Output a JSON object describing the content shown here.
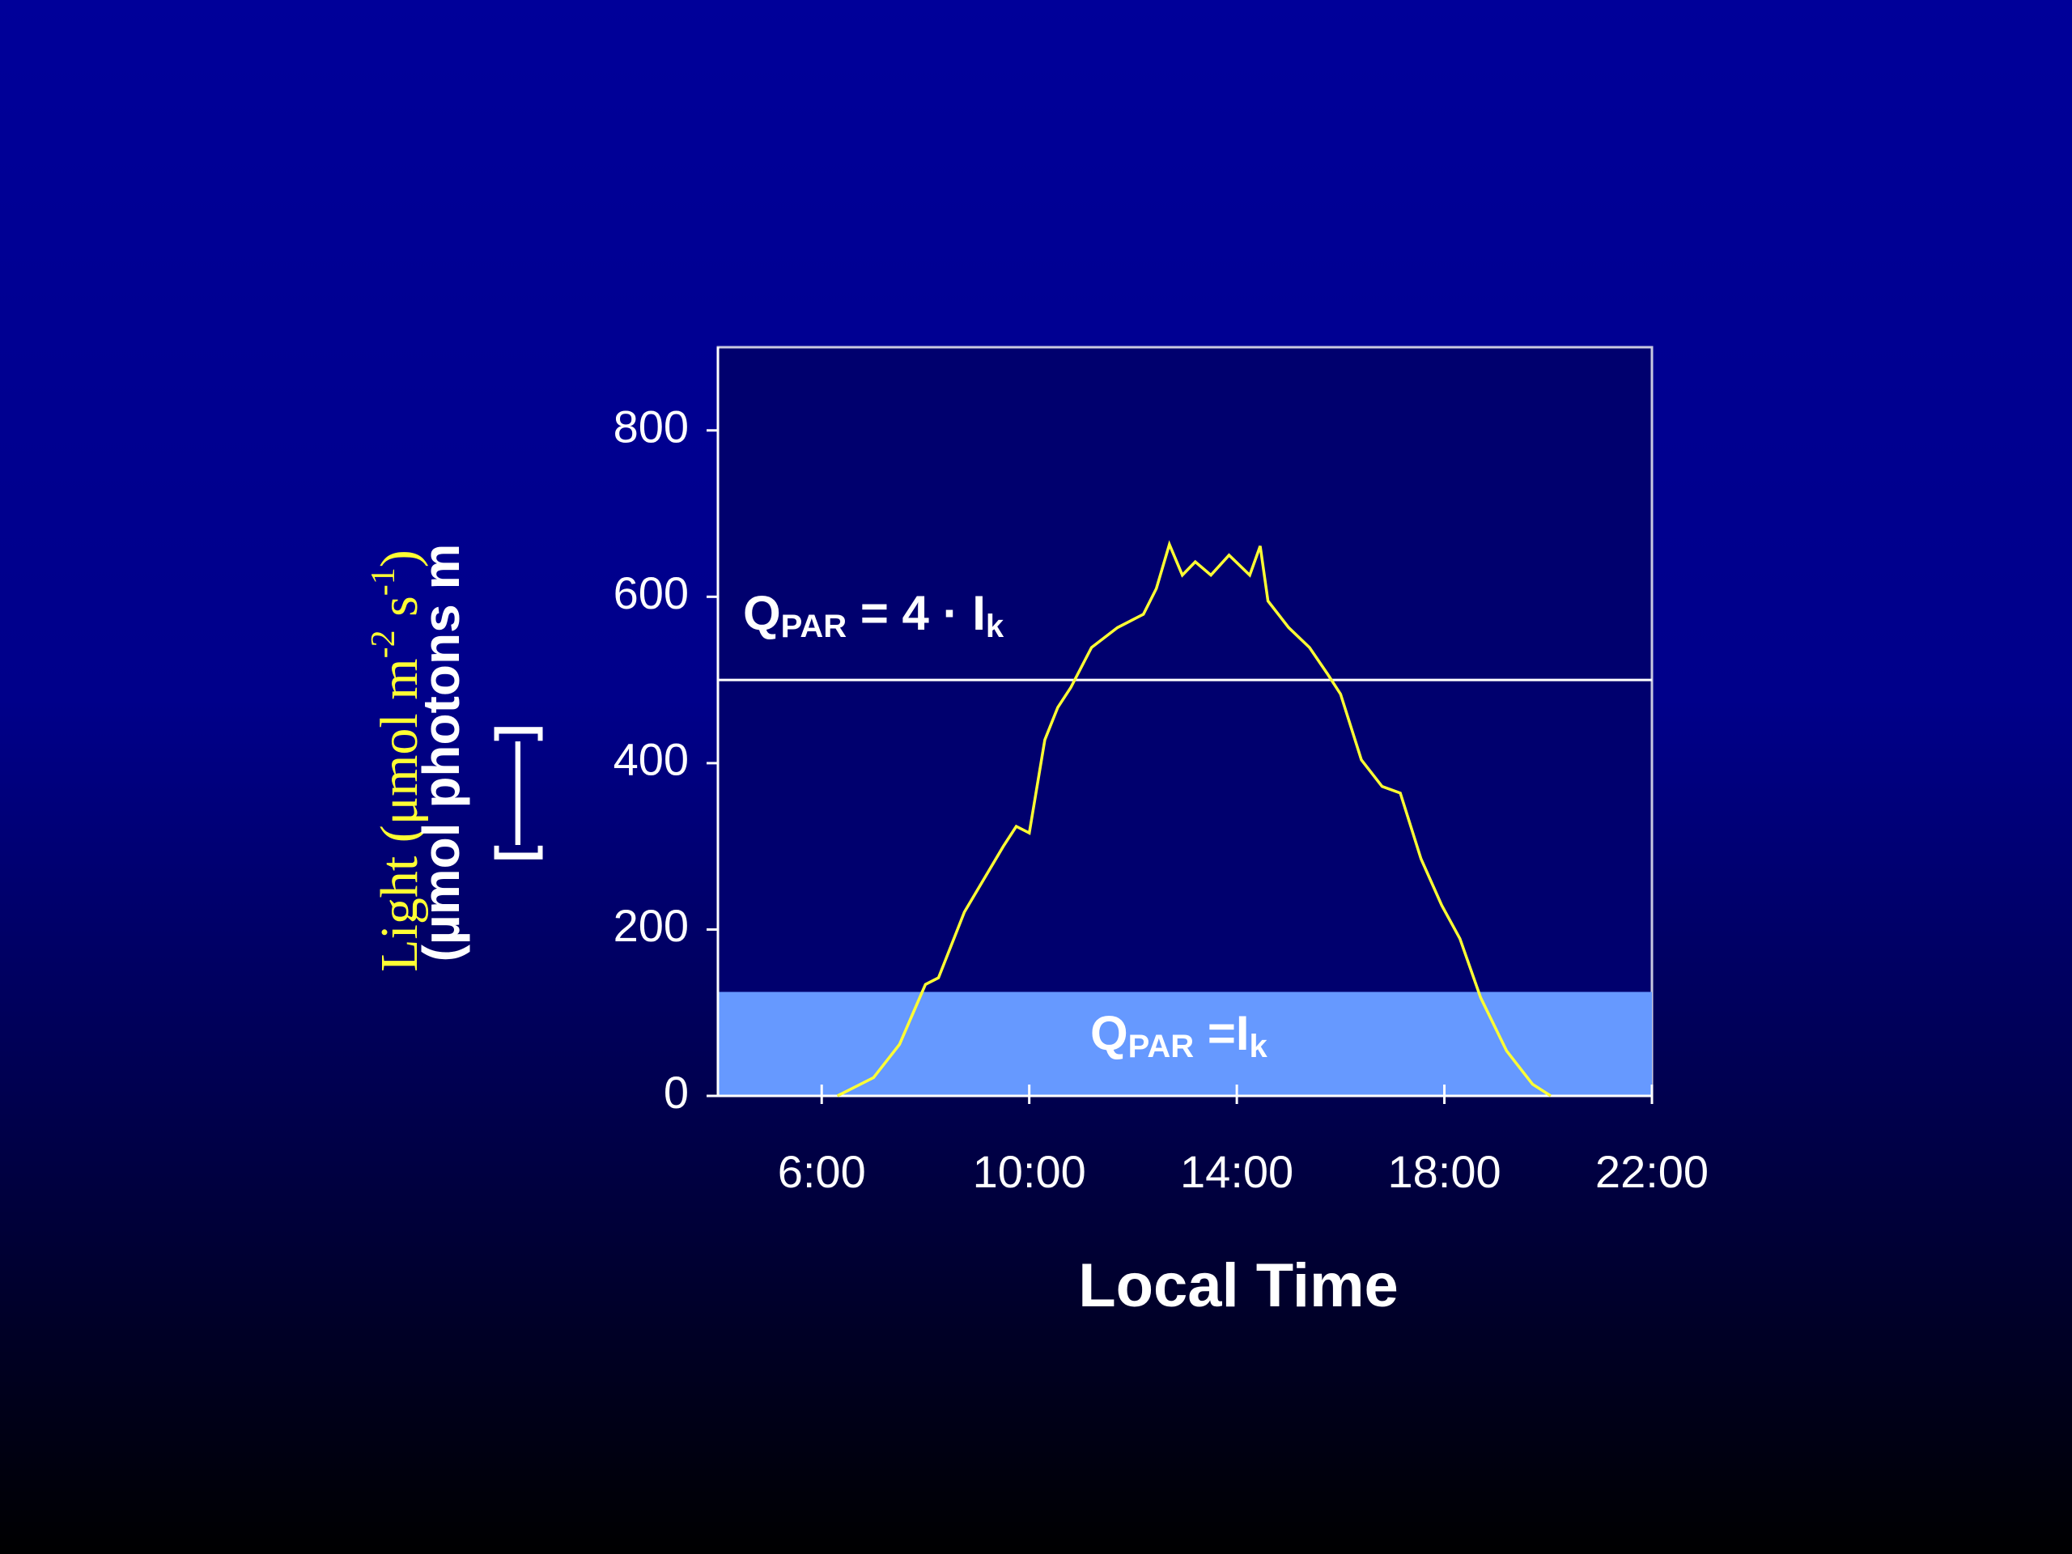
{
  "chart_data": {
    "type": "line",
    "x": [
      6.3,
      7.0,
      7.5,
      8.0,
      8.25,
      8.75,
      9.5,
      9.75,
      10.0,
      10.3,
      10.55,
      10.8,
      11.2,
      11.7,
      12.2,
      12.45,
      12.7,
      12.95,
      13.2,
      13.5,
      13.85,
      14.25,
      14.45,
      14.6,
      15.0,
      15.4,
      15.75,
      16.0,
      16.4,
      16.8,
      17.15,
      17.55,
      17.95,
      18.3,
      18.7,
      19.2,
      19.7,
      20.05
    ],
    "values": [
      0,
      22,
      62,
      134,
      142,
      221,
      300,
      324,
      316,
      428,
      467,
      491,
      539,
      563,
      579,
      610,
      663,
      626,
      642,
      626,
      650,
      626,
      661,
      595,
      563,
      539,
      507,
      483,
      404,
      372,
      364,
      285,
      229,
      189,
      118,
      54,
      14,
      0
    ],
    "color": "#ffff33",
    "xlim": [
      4,
      22
    ],
    "xticks": [
      {
        "value": 6,
        "label": "6:00"
      },
      {
        "value": 10,
        "label": "10:00"
      },
      {
        "value": 14,
        "label": "14:00"
      },
      {
        "value": 18,
        "label": "18:00"
      },
      {
        "value": 22,
        "label": "22:00"
      }
    ],
    "ylim": [
      0,
      900
    ],
    "yticks": [
      0,
      200,
      400,
      600,
      800
    ],
    "x_label": "Local Time",
    "y_label": {
      "main": [
        "Light (μmol m",
        "-2",
        " s",
        "-1",
        ")"
      ],
      "overlay": [
        "(µmol photons m",
        "[——]"
      ]
    },
    "shaded_band": {
      "from": 0,
      "to": 125,
      "color": "#6699ff"
    },
    "threshold_line": {
      "value": 500,
      "color": "#ffffff"
    },
    "annotations": [
      {
        "parts": [
          "Q",
          "PAR",
          " = 4 · I",
          "k"
        ]
      },
      {
        "parts": [
          "Q",
          "PAR",
          " =I",
          "k"
        ]
      }
    ]
  }
}
